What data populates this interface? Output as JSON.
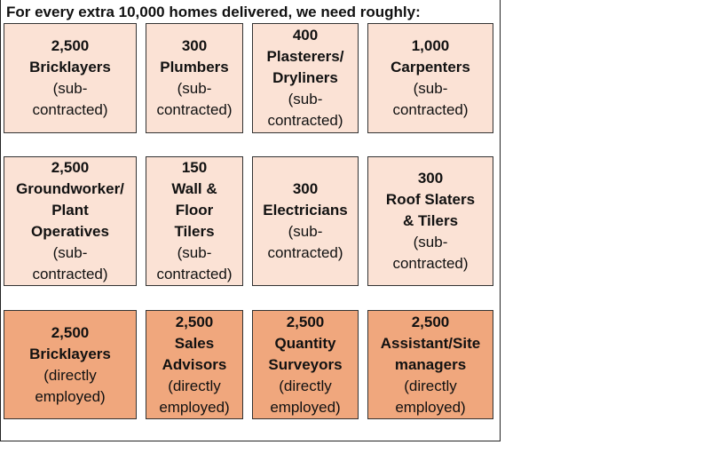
{
  "title": "For every extra 10,000 homes delivered, we need roughly:",
  "rows": [
    [
      {
        "count": "2,500",
        "role": [
          "Bricklayers"
        ],
        "note": [
          "(sub-",
          "contracted)"
        ]
      },
      {
        "count": "300",
        "role": [
          "Plumbers"
        ],
        "note": [
          "(sub-",
          "contracted)"
        ]
      },
      {
        "count": "400",
        "role": [
          "Plasterers/",
          "Dryliners"
        ],
        "note": [
          "(sub-",
          "contracted)"
        ]
      },
      {
        "count": "1,000",
        "role": [
          "Carpenters"
        ],
        "note": [
          "(sub-",
          "contracted)"
        ]
      }
    ],
    [
      {
        "count": "2,500",
        "role": [
          "Groundworker/",
          "Plant",
          "Operatives"
        ],
        "note": [
          "(sub-",
          "contracted)"
        ]
      },
      {
        "count": "150",
        "role": [
          "Wall &",
          "Floor",
          "Tilers"
        ],
        "note": [
          "(sub-",
          "contracted)"
        ]
      },
      {
        "count": "300",
        "role": [
          "Electricians"
        ],
        "note": [
          "(sub-",
          "contracted)"
        ]
      },
      {
        "count": "300",
        "role": [
          "Roof Slaters",
          "& Tilers"
        ],
        "note": [
          "(sub-",
          "contracted)"
        ]
      }
    ],
    [
      {
        "count": "2,500",
        "role": [
          "Bricklayers"
        ],
        "note": [
          "(directly",
          "employed)"
        ]
      },
      {
        "count": "2,500",
        "role": [
          "Sales",
          "Advisors"
        ],
        "note": [
          "(directly",
          "employed)"
        ]
      },
      {
        "count": "2,500",
        "role": [
          "Quantity",
          "Surveyors"
        ],
        "note": [
          "(directly",
          "employed)"
        ]
      },
      {
        "count": "2,500",
        "role": [
          "Assistant/Site",
          "managers"
        ],
        "note": [
          "(directly",
          "employed)"
        ]
      }
    ]
  ]
}
